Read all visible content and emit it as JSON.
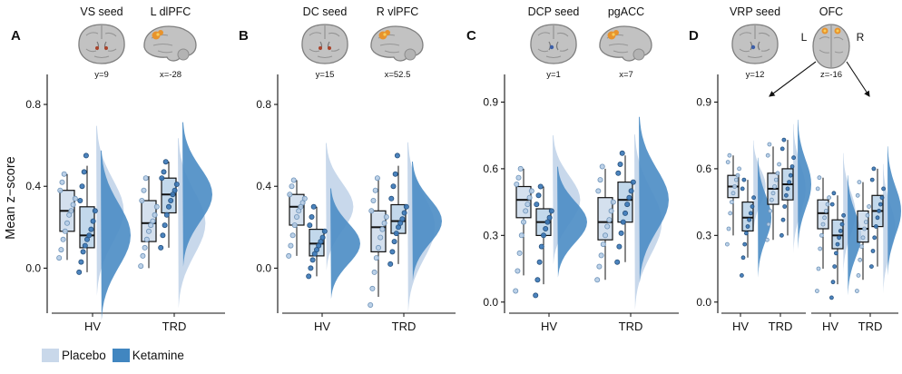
{
  "figure": {
    "ylabel": "Mean z−score",
    "legend": {
      "items": [
        {
          "label": "Placebo",
          "color": "#c9d8ea"
        },
        {
          "label": "Ketamine",
          "color": "#4186c0"
        }
      ]
    },
    "colors": {
      "placebo_fill": "#c9d8ea",
      "ketamine_fill": "#4186c0",
      "placebo_violin": "#c5d6ea",
      "ketamine_violin": "#4e8ec6",
      "placebo_point_fill": "#b6cde6",
      "placebo_point_stroke": "#6e93b8",
      "ketamine_point_fill": "#3d7ab8",
      "ketamine_point_stroke": "#27517d",
      "box_stroke": "#111111",
      "activation": "#e8932c",
      "brain_fill": "#c2c2c2",
      "brain_stroke": "#7f7f7f"
    }
  },
  "chart_data": [
    {
      "panel": "A",
      "type": "raincloud (boxplot + jittered points + half-violin)",
      "seed": {
        "label": "VS seed",
        "coord": "y=9",
        "view": "coronal",
        "marker": "red-dots"
      },
      "target": {
        "label": "L dlPFC",
        "coord": "x=-28",
        "view": "sagittal",
        "marker": "orange-blob"
      },
      "ylim": [
        -0.22,
        0.92
      ],
      "yticks": [
        0.0,
        0.4,
        0.8
      ],
      "subplots": [
        {
          "label": "",
          "categories": [
            "HV",
            "TRD"
          ],
          "groups": [
            {
              "category": "HV",
              "series": [
                {
                  "name": "Placebo",
                  "box": {
                    "lo": 0.04,
                    "q1": 0.18,
                    "median": 0.28,
                    "q3": 0.38,
                    "hi": 0.46
                  },
                  "points": [
                    0.05,
                    0.09,
                    0.14,
                    0.18,
                    0.22,
                    0.26,
                    0.28,
                    0.31,
                    0.34,
                    0.38,
                    0.42,
                    0.46
                  ]
                },
                {
                  "name": "Ketamine",
                  "box": {
                    "lo": -0.02,
                    "q1": 0.1,
                    "median": 0.16,
                    "q3": 0.3,
                    "hi": 0.5
                  },
                  "points": [
                    -0.02,
                    0.03,
                    0.08,
                    0.11,
                    0.14,
                    0.16,
                    0.19,
                    0.23,
                    0.28,
                    0.33,
                    0.4,
                    0.47,
                    0.55
                  ]
                }
              ]
            },
            {
              "category": "TRD",
              "series": [
                {
                  "name": "Placebo",
                  "box": {
                    "lo": 0.0,
                    "q1": 0.13,
                    "median": 0.22,
                    "q3": 0.33,
                    "hi": 0.45
                  },
                  "points": [
                    0.01,
                    0.06,
                    0.1,
                    0.14,
                    0.18,
                    0.21,
                    0.23,
                    0.26,
                    0.3,
                    0.33,
                    0.38,
                    0.44
                  ]
                },
                {
                  "name": "Ketamine",
                  "box": {
                    "lo": 0.1,
                    "q1": 0.27,
                    "median": 0.36,
                    "q3": 0.44,
                    "hi": 0.52
                  },
                  "points": [
                    0.1,
                    0.16,
                    0.21,
                    0.26,
                    0.3,
                    0.33,
                    0.36,
                    0.38,
                    0.41,
                    0.44,
                    0.47,
                    0.52
                  ]
                }
              ]
            }
          ]
        }
      ]
    },
    {
      "panel": "B",
      "type": "raincloud (boxplot + jittered points + half-violin)",
      "seed": {
        "label": "DC seed",
        "coord": "y=15",
        "view": "coronal",
        "marker": "red-dots"
      },
      "target": {
        "label": "R vlPFC",
        "coord": "x=52.5",
        "view": "sagittal",
        "marker": "orange-blob"
      },
      "ylim": [
        -0.22,
        0.92
      ],
      "yticks": [
        0.0,
        0.4,
        0.8
      ],
      "subplots": [
        {
          "label": "",
          "categories": [
            "HV",
            "TRD"
          ],
          "groups": [
            {
              "category": "HV",
              "series": [
                {
                  "name": "Placebo",
                  "box": {
                    "lo": 0.06,
                    "q1": 0.21,
                    "median": 0.3,
                    "q3": 0.36,
                    "hi": 0.43
                  },
                  "points": [
                    0.06,
                    0.11,
                    0.16,
                    0.21,
                    0.25,
                    0.28,
                    0.3,
                    0.32,
                    0.34,
                    0.36,
                    0.4,
                    0.43
                  ]
                },
                {
                  "name": "Ketamine",
                  "box": {
                    "lo": -0.04,
                    "q1": 0.06,
                    "median": 0.12,
                    "q3": 0.19,
                    "hi": 0.3
                  },
                  "points": [
                    -0.04,
                    0.0,
                    0.04,
                    0.07,
                    0.09,
                    0.11,
                    0.13,
                    0.15,
                    0.18,
                    0.21,
                    0.25,
                    0.3
                  ]
                }
              ]
            },
            {
              "category": "TRD",
              "series": [
                {
                  "name": "Placebo",
                  "box": {
                    "lo": -0.14,
                    "q1": 0.08,
                    "median": 0.2,
                    "q3": 0.28,
                    "hi": 0.44
                  },
                  "points": [
                    -0.18,
                    -0.1,
                    -0.02,
                    0.05,
                    0.1,
                    0.15,
                    0.19,
                    0.22,
                    0.25,
                    0.28,
                    0.33,
                    0.38,
                    0.44
                  ]
                },
                {
                  "name": "Ketamine",
                  "box": {
                    "lo": 0.02,
                    "q1": 0.17,
                    "median": 0.23,
                    "q3": 0.31,
                    "hi": 0.5
                  },
                  "points": [
                    0.02,
                    0.08,
                    0.13,
                    0.17,
                    0.2,
                    0.22,
                    0.24,
                    0.27,
                    0.3,
                    0.34,
                    0.4,
                    0.46,
                    0.55
                  ]
                }
              ]
            }
          ]
        }
      ]
    },
    {
      "panel": "C",
      "type": "raincloud (boxplot + jittered points + half-violin)",
      "seed": {
        "label": "DCP seed",
        "coord": "y=1",
        "view": "coronal",
        "marker": "blue-dot"
      },
      "target": {
        "label": "pgACC",
        "coord": "x=7",
        "view": "sagittal",
        "marker": "orange-blob"
      },
      "ylim": [
        -0.05,
        1.0
      ],
      "yticks": [
        0.0,
        0.3,
        0.6,
        0.9
      ],
      "subplots": [
        {
          "label": "",
          "categories": [
            "HV",
            "TRD"
          ],
          "groups": [
            {
              "category": "HV",
              "series": [
                {
                  "name": "Placebo",
                  "box": {
                    "lo": 0.12,
                    "q1": 0.38,
                    "median": 0.46,
                    "q3": 0.52,
                    "hi": 0.6
                  },
                  "points": [
                    0.05,
                    0.14,
                    0.22,
                    0.3,
                    0.36,
                    0.41,
                    0.44,
                    0.47,
                    0.5,
                    0.53,
                    0.56,
                    0.6
                  ]
                },
                {
                  "name": "Ketamine",
                  "box": {
                    "lo": 0.08,
                    "q1": 0.3,
                    "median": 0.36,
                    "q3": 0.42,
                    "hi": 0.52
                  },
                  "points": [
                    0.03,
                    0.1,
                    0.18,
                    0.25,
                    0.3,
                    0.33,
                    0.36,
                    0.38,
                    0.41,
                    0.44,
                    0.48,
                    0.52
                  ]
                }
              ]
            },
            {
              "category": "TRD",
              "series": [
                {
                  "name": "Placebo",
                  "box": {
                    "lo": 0.1,
                    "q1": 0.28,
                    "median": 0.36,
                    "q3": 0.47,
                    "hi": 0.6
                  },
                  "points": [
                    0.1,
                    0.16,
                    0.21,
                    0.26,
                    0.3,
                    0.34,
                    0.37,
                    0.41,
                    0.45,
                    0.5,
                    0.55,
                    0.61
                  ]
                },
                {
                  "name": "Ketamine",
                  "box": {
                    "lo": 0.18,
                    "q1": 0.36,
                    "median": 0.46,
                    "q3": 0.54,
                    "hi": 0.66
                  },
                  "points": [
                    0.18,
                    0.25,
                    0.31,
                    0.36,
                    0.4,
                    0.44,
                    0.47,
                    0.5,
                    0.54,
                    0.58,
                    0.62,
                    0.67
                  ]
                }
              ]
            }
          ]
        }
      ]
    },
    {
      "panel": "D",
      "type": "raincloud (boxplot + jittered points + half-violin)",
      "seed": {
        "label": "VRP seed",
        "coord": "y=12",
        "view": "coronal",
        "marker": "blue-dot"
      },
      "target": {
        "label": "OFC",
        "coord": "z=-16",
        "view": "axial",
        "marker": "orange-blobs"
      },
      "ylim": [
        -0.05,
        1.0
      ],
      "yticks": [
        0.0,
        0.3,
        0.6,
        0.9
      ],
      "subplots": [
        {
          "label": "L",
          "categories": [
            "HV",
            "TRD"
          ],
          "groups": [
            {
              "category": "HV",
              "series": [
                {
                  "name": "Placebo",
                  "box": {
                    "lo": 0.3,
                    "q1": 0.47,
                    "median": 0.52,
                    "q3": 0.57,
                    "hi": 0.66
                  },
                  "points": [
                    0.26,
                    0.33,
                    0.4,
                    0.45,
                    0.49,
                    0.52,
                    0.55,
                    0.57,
                    0.6,
                    0.63,
                    0.66
                  ]
                },
                {
                  "name": "Ketamine",
                  "box": {
                    "lo": 0.2,
                    "q1": 0.32,
                    "median": 0.38,
                    "q3": 0.45,
                    "hi": 0.55
                  },
                  "points": [
                    0.12,
                    0.2,
                    0.26,
                    0.31,
                    0.34,
                    0.37,
                    0.4,
                    0.43,
                    0.47,
                    0.51,
                    0.55
                  ]
                }
              ]
            },
            {
              "category": "TRD",
              "series": [
                {
                  "name": "Placebo",
                  "box": {
                    "lo": 0.28,
                    "q1": 0.44,
                    "median": 0.51,
                    "q3": 0.58,
                    "hi": 0.7
                  },
                  "points": [
                    0.28,
                    0.35,
                    0.41,
                    0.46,
                    0.49,
                    0.52,
                    0.55,
                    0.58,
                    0.62,
                    0.66,
                    0.71
                  ]
                },
                {
                  "name": "Ketamine",
                  "box": {
                    "lo": 0.3,
                    "q1": 0.46,
                    "median": 0.53,
                    "q3": 0.6,
                    "hi": 0.73
                  },
                  "points": [
                    0.3,
                    0.37,
                    0.43,
                    0.48,
                    0.51,
                    0.54,
                    0.57,
                    0.61,
                    0.65,
                    0.69,
                    0.73
                  ]
                }
              ]
            }
          ]
        },
        {
          "label": "R",
          "categories": [
            "HV",
            "TRD"
          ],
          "groups": [
            {
              "category": "HV",
              "series": [
                {
                  "name": "Placebo",
                  "box": {
                    "lo": 0.15,
                    "q1": 0.33,
                    "median": 0.4,
                    "q3": 0.46,
                    "hi": 0.56
                  },
                  "points": [
                    0.05,
                    0.15,
                    0.24,
                    0.3,
                    0.35,
                    0.38,
                    0.41,
                    0.44,
                    0.47,
                    0.51,
                    0.56
                  ]
                },
                {
                  "name": "Ketamine",
                  "box": {
                    "lo": 0.08,
                    "q1": 0.24,
                    "median": 0.3,
                    "q3": 0.37,
                    "hi": 0.48
                  },
                  "points": [
                    0.02,
                    0.09,
                    0.16,
                    0.22,
                    0.26,
                    0.29,
                    0.32,
                    0.35,
                    0.39,
                    0.44,
                    0.49
                  ]
                }
              ]
            },
            {
              "category": "TRD",
              "series": [
                {
                  "name": "Placebo",
                  "box": {
                    "lo": 0.1,
                    "q1": 0.27,
                    "median": 0.33,
                    "q3": 0.41,
                    "hi": 0.54
                  },
                  "points": [
                    0.05,
                    0.12,
                    0.19,
                    0.25,
                    0.29,
                    0.33,
                    0.36,
                    0.39,
                    0.43,
                    0.48,
                    0.54
                  ]
                },
                {
                  "name": "Ketamine",
                  "box": {
                    "lo": 0.16,
                    "q1": 0.34,
                    "median": 0.41,
                    "q3": 0.48,
                    "hi": 0.6
                  },
                  "points": [
                    0.16,
                    0.23,
                    0.29,
                    0.34,
                    0.38,
                    0.41,
                    0.44,
                    0.47,
                    0.51,
                    0.55,
                    0.6
                  ]
                }
              ]
            }
          ]
        }
      ]
    }
  ]
}
